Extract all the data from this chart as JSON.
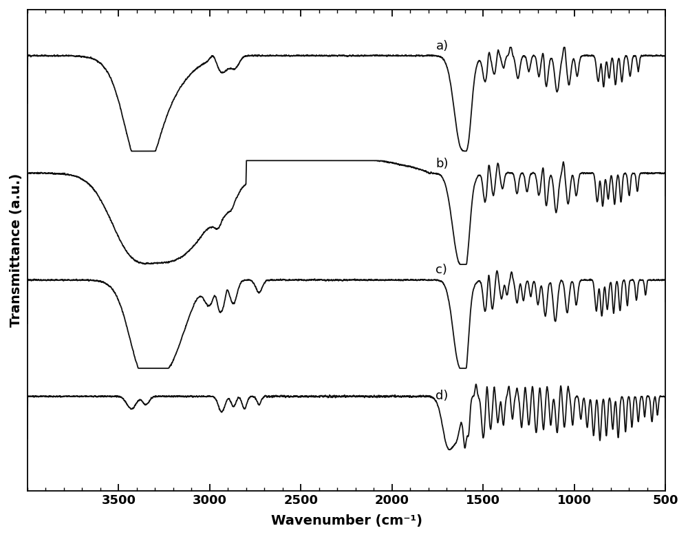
{
  "xlabel": "Wavenumber (cm⁻¹)",
  "ylabel": "Transmittance (a.u.)",
  "xlim": [
    500,
    4000
  ],
  "xticks": [
    500,
    1000,
    1500,
    2000,
    2500,
    3000,
    3500
  ],
  "labels": [
    "a)",
    "b)",
    "c)",
    "d)"
  ],
  "line_color": "#111111",
  "line_width": 1.3,
  "font_size_label": 14,
  "font_size_tick": 13
}
